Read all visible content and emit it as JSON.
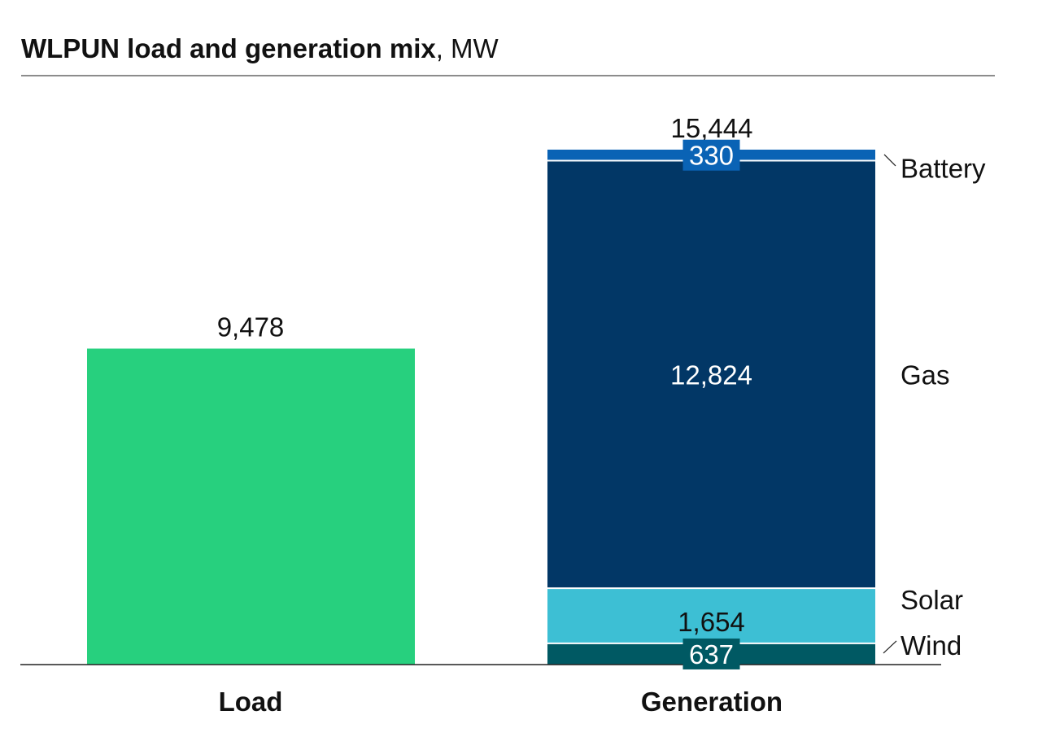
{
  "title": {
    "bold": "WLPUN load and generation mix",
    "rest": ", MW"
  },
  "chart_data": {
    "type": "bar",
    "stacked": true,
    "title": "WLPUN load and generation mix, MW",
    "unit": "MW",
    "categories": [
      "Load",
      "Generation"
    ],
    "totals": {
      "Load": "9,478",
      "Generation": "15,444"
    },
    "series": [
      {
        "name": "Load",
        "color": "#27d07e",
        "values": [
          9478,
          0
        ],
        "labels": [
          "",
          ""
        ]
      },
      {
        "name": "Wind",
        "color": "#005963",
        "values": [
          0,
          637
        ],
        "labels": [
          "",
          "637"
        ]
      },
      {
        "name": "Solar",
        "color": "#3dbfd4",
        "values": [
          0,
          1654
        ],
        "labels": [
          "",
          "1,654"
        ]
      },
      {
        "name": "Gas",
        "color": "#023766",
        "values": [
          0,
          12824
        ],
        "labels": [
          "",
          "12,824"
        ]
      },
      {
        "name": "Battery",
        "color": "#0a63b5",
        "values": [
          0,
          330
        ],
        "labels": [
          "",
          "330"
        ]
      }
    ]
  }
}
